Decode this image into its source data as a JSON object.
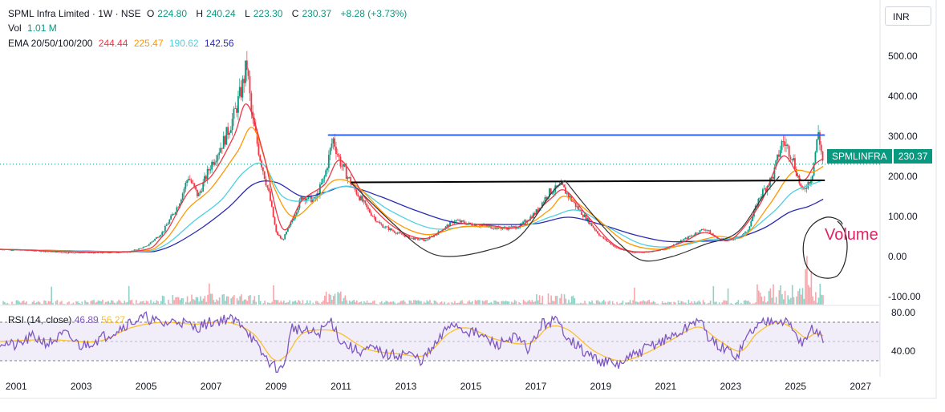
{
  "header": {
    "symbol": "SPML Infra Limited · 1W · NSE",
    "open_label": "O",
    "open": "224.80",
    "high_label": "H",
    "high": "240.24",
    "low_label": "L",
    "low": "223.30",
    "close_label": "C",
    "close": "230.37",
    "change": "+8.28 (+3.73%)",
    "vol_label": "Vol",
    "vol": "1.01 M",
    "ema_label": "EMA 20/50/100/200",
    "ema20": "244.44",
    "ema50": "225.47",
    "ema100": "190.62",
    "ema200": "142.56"
  },
  "currency": "INR",
  "price_tag": {
    "symbol": "SPMLINFRA",
    "value": "230.37"
  },
  "annotation": "Volume",
  "rsi": {
    "label": "RSI (14, close)",
    "value1": "46.89",
    "value2": "56.27"
  },
  "colors": {
    "up": "#089981",
    "down": "#f23645",
    "ema20": "#f23645",
    "ema50": "#ff9800",
    "ema100": "#4dd0e1",
    "ema200": "#2a2ab5",
    "rsi": "#7e57c2",
    "rsi_ma": "#fbc02d",
    "resistance": "#2962ff",
    "annotation": "#e91e63"
  },
  "chart_data": [
    {
      "type": "candlestick",
      "x_ticks": [
        "2001",
        "2003",
        "2005",
        "2007",
        "2009",
        "2011",
        "2013",
        "2015",
        "2017",
        "2019",
        "2021",
        "2023",
        "2025",
        "2027"
      ],
      "y_ticks": [
        "500.00",
        "400.00",
        "300.00",
        "200.00",
        "100.00",
        "0.00",
        "-100.00"
      ],
      "ylim": [
        -120,
        560
      ],
      "xlim": [
        2000.5,
        2027.6
      ],
      "price_series": [
        [
          2000.5,
          18
        ],
        [
          2001.5,
          15
        ],
        [
          2002.5,
          10
        ],
        [
          2003.5,
          9
        ],
        [
          2004.5,
          12
        ],
        [
          2005.0,
          25
        ],
        [
          2005.5,
          60
        ],
        [
          2006.0,
          130
        ],
        [
          2006.3,
          200
        ],
        [
          2006.6,
          150
        ],
        [
          2007.0,
          230
        ],
        [
          2007.4,
          290
        ],
        [
          2007.7,
          350
        ],
        [
          2007.95,
          420
        ],
        [
          2008.1,
          480
        ],
        [
          2008.25,
          350
        ],
        [
          2008.5,
          250
        ],
        [
          2008.8,
          150
        ],
        [
          2009.0,
          60
        ],
        [
          2009.2,
          40
        ],
        [
          2009.5,
          90
        ],
        [
          2009.8,
          150
        ],
        [
          2010.2,
          140
        ],
        [
          2010.5,
          200
        ],
        [
          2010.75,
          295
        ],
        [
          2011.0,
          230
        ],
        [
          2011.4,
          170
        ],
        [
          2011.8,
          120
        ],
        [
          2012.2,
          80
        ],
        [
          2012.7,
          60
        ],
        [
          2013.2,
          45
        ],
        [
          2013.6,
          40
        ],
        [
          2014.0,
          60
        ],
        [
          2014.5,
          90
        ],
        [
          2015.0,
          80
        ],
        [
          2015.5,
          75
        ],
        [
          2016.0,
          70
        ],
        [
          2016.5,
          75
        ],
        [
          2017.0,
          110
        ],
        [
          2017.4,
          160
        ],
        [
          2017.8,
          175
        ],
        [
          2018.2,
          130
        ],
        [
          2018.6,
          90
        ],
        [
          2019.0,
          50
        ],
        [
          2019.5,
          20
        ],
        [
          2020.0,
          10
        ],
        [
          2020.5,
          12
        ],
        [
          2021.0,
          18
        ],
        [
          2021.5,
          40
        ],
        [
          2022.2,
          70
        ],
        [
          2022.6,
          45
        ],
        [
          2023.0,
          40
        ],
        [
          2023.5,
          60
        ],
        [
          2023.9,
          150
        ],
        [
          2024.3,
          200
        ],
        [
          2024.6,
          290
        ],
        [
          2024.9,
          250
        ],
        [
          2025.2,
          160
        ],
        [
          2025.5,
          200
        ],
        [
          2025.7,
          310
        ],
        [
          2025.85,
          230
        ]
      ],
      "ema20_series": [
        [
          2000.5,
          18
        ],
        [
          2004.5,
          12
        ],
        [
          2005.5,
          50
        ],
        [
          2006.3,
          160
        ],
        [
          2007.0,
          200
        ],
        [
          2007.7,
          300
        ],
        [
          2008.1,
          380
        ],
        [
          2008.6,
          260
        ],
        [
          2009.2,
          70
        ],
        [
          2009.8,
          140
        ],
        [
          2010.5,
          180
        ],
        [
          2011.0,
          240
        ],
        [
          2011.8,
          140
        ],
        [
          2012.7,
          70
        ],
        [
          2013.6,
          45
        ],
        [
          2014.5,
          80
        ],
        [
          2015.5,
          78
        ],
        [
          2016.5,
          75
        ],
        [
          2017.4,
          140
        ],
        [
          2017.9,
          165
        ],
        [
          2018.6,
          100
        ],
        [
          2019.5,
          25
        ],
        [
          2020.5,
          12
        ],
        [
          2021.5,
          35
        ],
        [
          2022.2,
          60
        ],
        [
          2023.0,
          42
        ],
        [
          2023.9,
          130
        ],
        [
          2024.6,
          250
        ],
        [
          2025.2,
          190
        ],
        [
          2025.6,
          230
        ],
        [
          2025.85,
          244
        ]
      ],
      "ema50_series": [
        [
          2000.5,
          18
        ],
        [
          2004.5,
          12
        ],
        [
          2005.5,
          35
        ],
        [
          2006.3,
          120
        ],
        [
          2007.0,
          170
        ],
        [
          2007.8,
          260
        ],
        [
          2008.3,
          320
        ],
        [
          2008.9,
          180
        ],
        [
          2009.5,
          100
        ],
        [
          2010.2,
          140
        ],
        [
          2010.8,
          190
        ],
        [
          2011.5,
          175
        ],
        [
          2012.5,
          95
        ],
        [
          2013.6,
          55
        ],
        [
          2014.8,
          75
        ],
        [
          2016.5,
          74
        ],
        [
          2017.4,
          115
        ],
        [
          2017.9,
          150
        ],
        [
          2018.8,
          100
        ],
        [
          2019.8,
          35
        ],
        [
          2020.8,
          18
        ],
        [
          2021.8,
          35
        ],
        [
          2022.6,
          50
        ],
        [
          2023.4,
          50
        ],
        [
          2024.2,
          130
        ],
        [
          2024.9,
          210
        ],
        [
          2025.5,
          210
        ],
        [
          2025.85,
          225
        ]
      ],
      "ema100_series": [
        [
          2000.5,
          18
        ],
        [
          2004.5,
          12
        ],
        [
          2005.5,
          25
        ],
        [
          2006.5,
          90
        ],
        [
          2007.3,
          140
        ],
        [
          2008.0,
          210
        ],
        [
          2008.6,
          230
        ],
        [
          2009.2,
          150
        ],
        [
          2010.0,
          140
        ],
        [
          2010.8,
          170
        ],
        [
          2011.5,
          170
        ],
        [
          2012.5,
          115
        ],
        [
          2013.8,
          70
        ],
        [
          2015.0,
          75
        ],
        [
          2016.5,
          74
        ],
        [
          2017.5,
          100
        ],
        [
          2018.3,
          115
        ],
        [
          2019.3,
          70
        ],
        [
          2020.3,
          30
        ],
        [
          2021.3,
          25
        ],
        [
          2022.3,
          42
        ],
        [
          2023.3,
          50
        ],
        [
          2024.3,
          110
        ],
        [
          2024.9,
          160
        ],
        [
          2025.5,
          180
        ],
        [
          2025.85,
          191
        ]
      ],
      "ema200_series": [
        [
          2000.5,
          18
        ],
        [
          2004.5,
          12
        ],
        [
          2005.5,
          18
        ],
        [
          2006.5,
          60
        ],
        [
          2007.5,
          120
        ],
        [
          2008.3,
          180
        ],
        [
          2009.0,
          185
        ],
        [
          2009.8,
          150
        ],
        [
          2010.5,
          160
        ],
        [
          2011.2,
          175
        ],
        [
          2012.2,
          150
        ],
        [
          2013.3,
          115
        ],
        [
          2014.5,
          85
        ],
        [
          2015.8,
          80
        ],
        [
          2017.0,
          82
        ],
        [
          2018.0,
          98
        ],
        [
          2019.0,
          80
        ],
        [
          2020.0,
          55
        ],
        [
          2021.0,
          38
        ],
        [
          2022.0,
          38
        ],
        [
          2023.0,
          43
        ],
        [
          2024.0,
          70
        ],
        [
          2024.8,
          110
        ],
        [
          2025.4,
          125
        ],
        [
          2025.85,
          143
        ]
      ],
      "resistance_line": [
        [
          2010.6,
          303
        ],
        [
          2025.9,
          303
        ]
      ],
      "neckline": [
        [
          2011.3,
          185
        ],
        [
          2025.9,
          190
        ]
      ],
      "cup_curves": [
        [
          [
            2011.3,
            185
          ],
          [
            2012.5,
            90
          ],
          [
            2013.5,
            20
          ],
          [
            2014.3,
            0
          ],
          [
            2015.5,
            15
          ],
          [
            2016.5,
            50
          ],
          [
            2017.5,
            160
          ],
          [
            2017.9,
            190
          ]
        ],
        [
          [
            2017.9,
            190
          ],
          [
            2018.8,
            100
          ],
          [
            2019.6,
            30
          ],
          [
            2020.3,
            -10
          ],
          [
            2021.2,
            0
          ],
          [
            2022.2,
            30
          ],
          [
            2023.2,
            60
          ],
          [
            2024.0,
            150
          ],
          [
            2024.5,
            200
          ]
        ]
      ]
    },
    {
      "type": "line",
      "name": "RSI (14, close)",
      "y_ticks": [
        "80.00",
        "40.00"
      ],
      "ylim": [
        15,
        85
      ],
      "upper_band": 70,
      "lower_band": 30,
      "mid_band": 50,
      "rsi_series": [
        [
          2000.5,
          50
        ],
        [
          2001.0,
          45
        ],
        [
          2001.5,
          55
        ],
        [
          2002.0,
          48
        ],
        [
          2002.5,
          58
        ],
        [
          2003.0,
          45
        ],
        [
          2003.5,
          52
        ],
        [
          2004.0,
          60
        ],
        [
          2004.5,
          70
        ],
        [
          2005.0,
          75
        ],
        [
          2005.5,
          68
        ],
        [
          2006.0,
          72
        ],
        [
          2006.5,
          64
        ],
        [
          2007.0,
          70
        ],
        [
          2007.5,
          74
        ],
        [
          2008.0,
          68
        ],
        [
          2008.5,
          40
        ],
        [
          2008.9,
          25
        ],
        [
          2009.2,
          20
        ],
        [
          2009.5,
          65
        ],
        [
          2009.9,
          60
        ],
        [
          2010.3,
          58
        ],
        [
          2010.7,
          72
        ],
        [
          2011.0,
          50
        ],
        [
          2011.5,
          40
        ],
        [
          2012.0,
          42
        ],
        [
          2012.5,
          35
        ],
        [
          2013.0,
          38
        ],
        [
          2013.5,
          30
        ],
        [
          2014.0,
          50
        ],
        [
          2014.4,
          70
        ],
        [
          2014.8,
          62
        ],
        [
          2015.2,
          58
        ],
        [
          2015.8,
          46
        ],
        [
          2016.3,
          55
        ],
        [
          2016.8,
          42
        ],
        [
          2017.2,
          68
        ],
        [
          2017.6,
          72
        ],
        [
          2018.0,
          55
        ],
        [
          2018.5,
          38
        ],
        [
          2019.0,
          30
        ],
        [
          2019.5,
          25
        ],
        [
          2020.0,
          35
        ],
        [
          2020.5,
          45
        ],
        [
          2021.0,
          52
        ],
        [
          2021.5,
          60
        ],
        [
          2022.0,
          74
        ],
        [
          2022.4,
          50
        ],
        [
          2022.8,
          42
        ],
        [
          2023.2,
          35
        ],
        [
          2023.6,
          60
        ],
        [
          2024.0,
          70
        ],
        [
          2024.4,
          75
        ],
        [
          2024.8,
          68
        ],
        [
          2025.2,
          48
        ],
        [
          2025.5,
          62
        ],
        [
          2025.7,
          60
        ],
        [
          2025.85,
          47
        ]
      ],
      "rsi_ma_series": [
        [
          2000.5,
          50
        ],
        [
          2002.0,
          52
        ],
        [
          2003.5,
          50
        ],
        [
          2004.5,
          64
        ],
        [
          2005.5,
          70
        ],
        [
          2006.5,
          68
        ],
        [
          2007.5,
          70
        ],
        [
          2008.3,
          58
        ],
        [
          2008.9,
          32
        ],
        [
          2009.3,
          35
        ],
        [
          2009.8,
          58
        ],
        [
          2010.5,
          62
        ],
        [
          2011.0,
          58
        ],
        [
          2011.8,
          42
        ],
        [
          2012.8,
          37
        ],
        [
          2013.6,
          36
        ],
        [
          2014.3,
          58
        ],
        [
          2014.9,
          64
        ],
        [
          2015.8,
          52
        ],
        [
          2016.8,
          48
        ],
        [
          2017.4,
          65
        ],
        [
          2018.0,
          62
        ],
        [
          2018.8,
          40
        ],
        [
          2019.6,
          30
        ],
        [
          2020.4,
          38
        ],
        [
          2021.2,
          52
        ],
        [
          2022.0,
          65
        ],
        [
          2022.6,
          52
        ],
        [
          2023.3,
          40
        ],
        [
          2023.8,
          58
        ],
        [
          2024.4,
          70
        ],
        [
          2024.9,
          64
        ],
        [
          2025.3,
          54
        ],
        [
          2025.6,
          58
        ],
        [
          2025.85,
          56
        ]
      ]
    }
  ]
}
